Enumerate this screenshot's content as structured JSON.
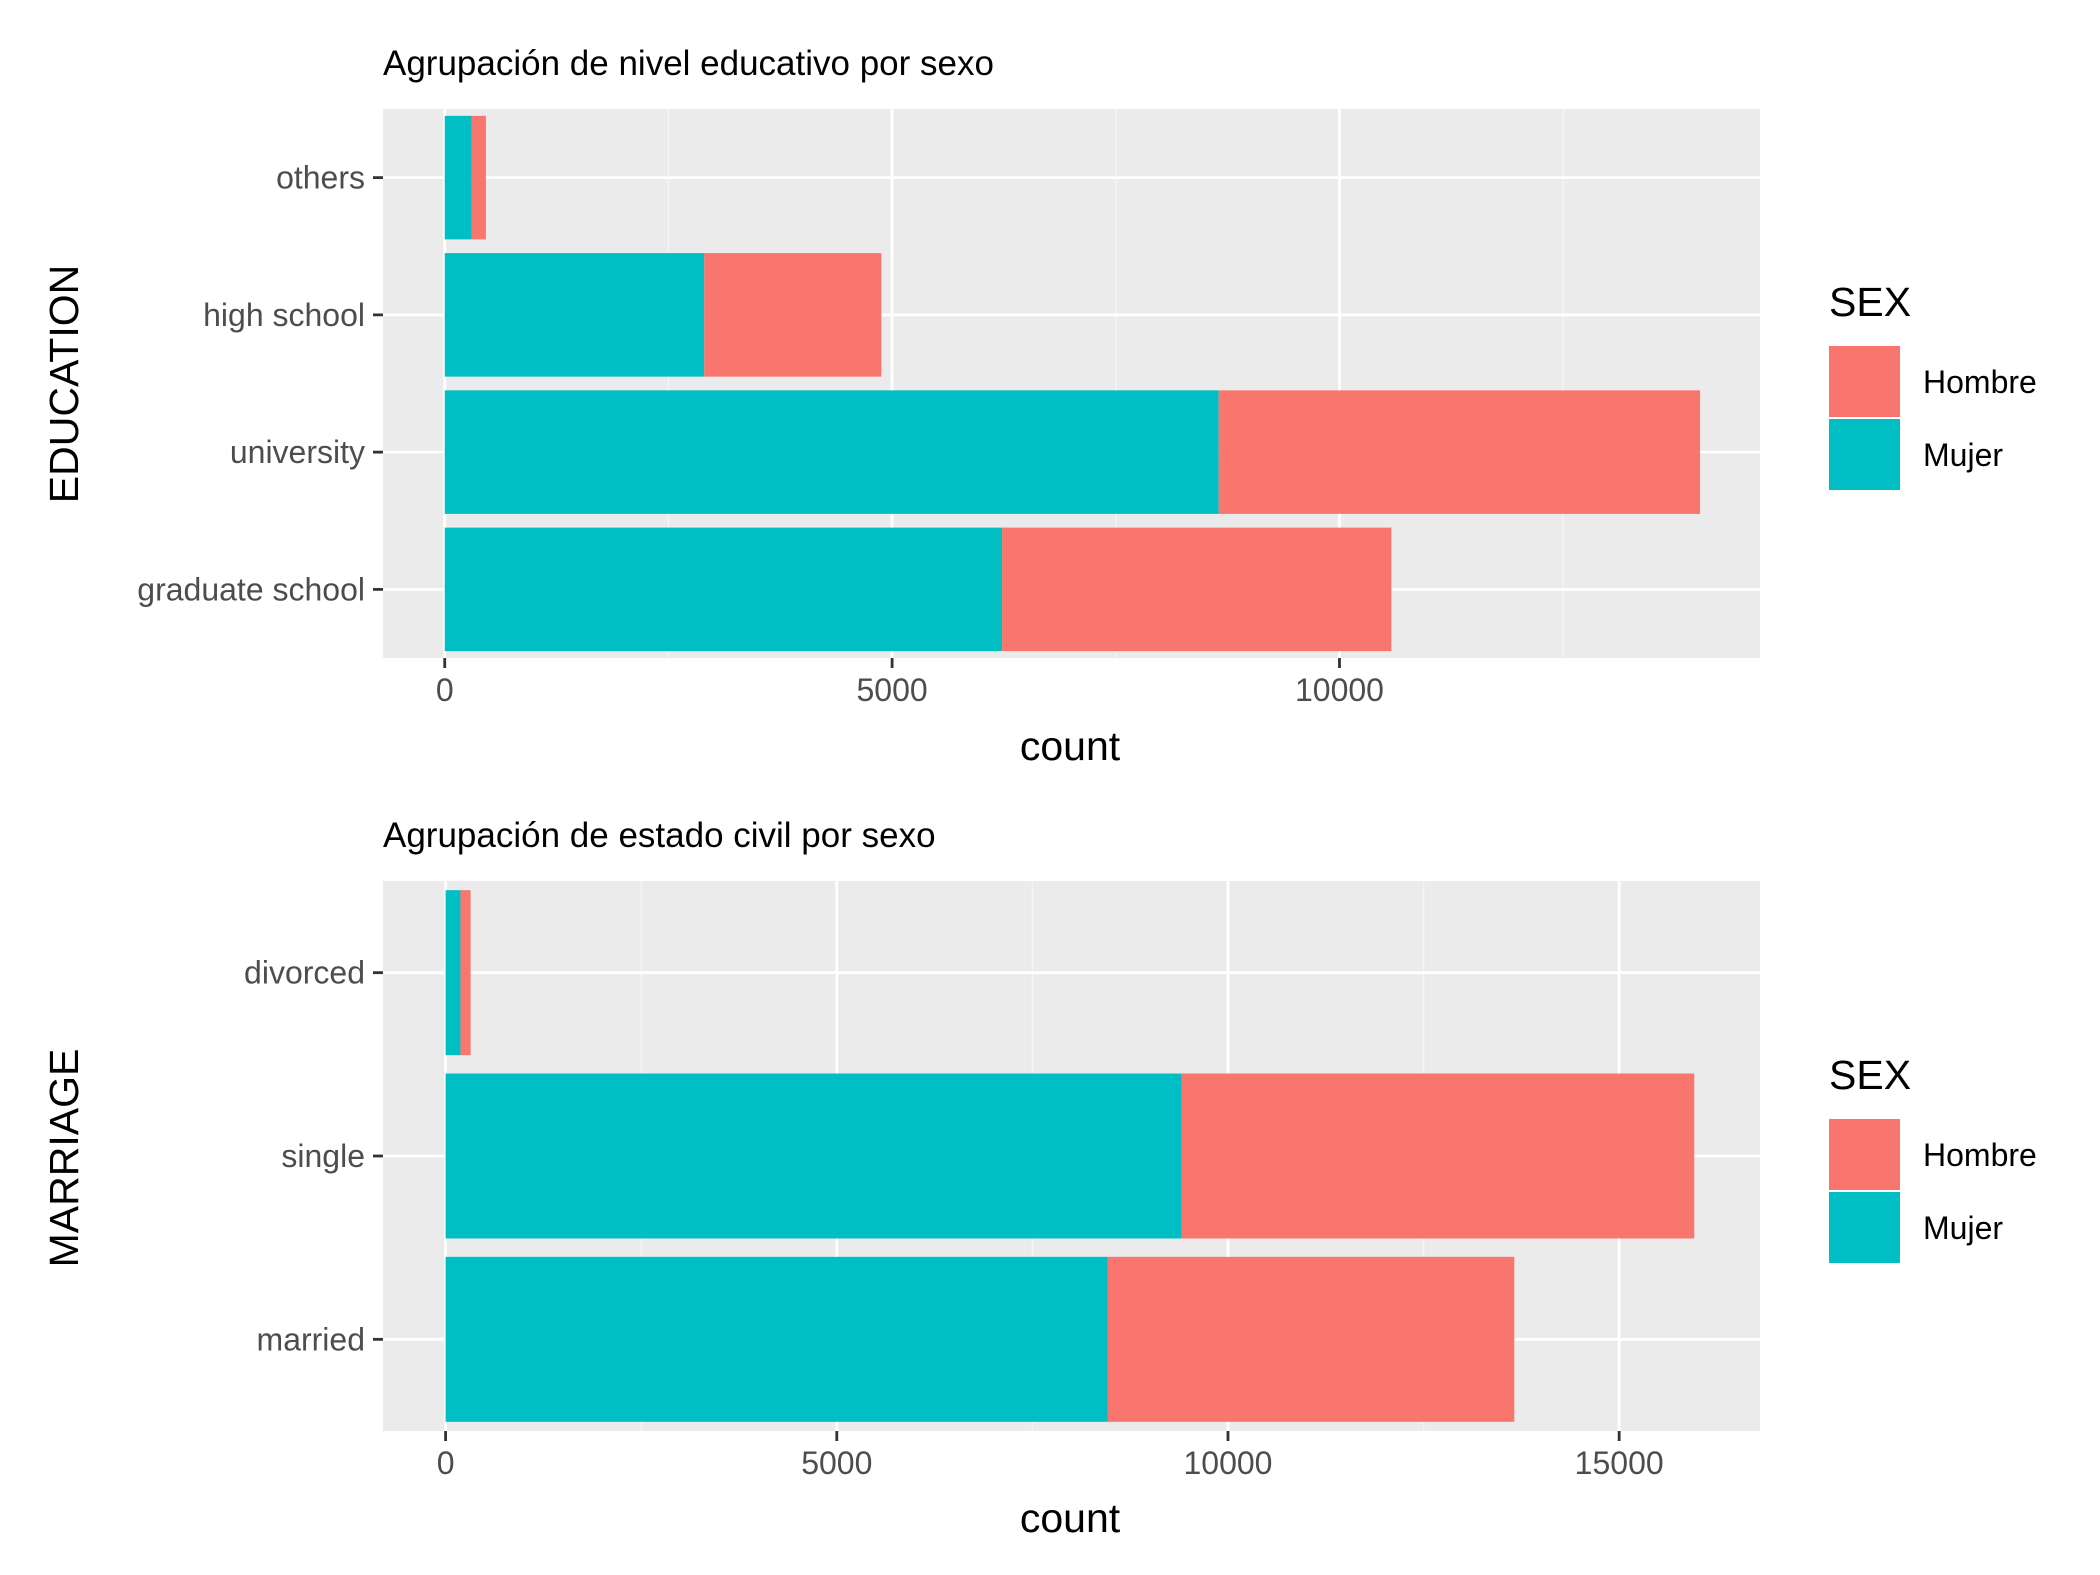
{
  "colors": {
    "hombre": "#F8766D",
    "mujer": "#00BFC4",
    "panel": "#EBEBEB",
    "grid_major": "#FFFFFF",
    "grid_minor": "#F5F5F5"
  },
  "chart_data": [
    {
      "type": "bar",
      "orientation": "horizontal",
      "stacked": true,
      "title": "Agrupación de nivel educativo por sexo",
      "xlabel": "count",
      "ylabel": "EDUCATION",
      "categories": [
        "others",
        "high school",
        "university",
        "graduate school"
      ],
      "series": [
        {
          "name": "Mujer",
          "values": [
            300,
            2900,
            8650,
            6230
          ]
        },
        {
          "name": "Hombre",
          "values": [
            160,
            1980,
            5380,
            4350
          ]
        }
      ],
      "xlim": [
        -690,
        14700
      ],
      "xticks": [
        0,
        5000,
        10000
      ],
      "xtick_labels": [
        "0",
        "5000",
        "10000"
      ],
      "grid": true,
      "legend": {
        "title": "SEX",
        "entries": [
          "Hombre",
          "Mujer"
        ],
        "placement": "right"
      }
    },
    {
      "type": "bar",
      "orientation": "horizontal",
      "stacked": true,
      "title": "Agrupación de estado civil por sexo",
      "xlabel": "count",
      "ylabel": "MARRIAGE",
      "categories": [
        "divorced",
        "single",
        "married"
      ],
      "series": [
        {
          "name": "Mujer",
          "values": [
            190,
            9410,
            8460
          ]
        },
        {
          "name": "Hombre",
          "values": [
            130,
            6550,
            5200
          ]
        }
      ],
      "xlim": [
        -800,
        16800
      ],
      "xticks": [
        0,
        5000,
        10000,
        15000
      ],
      "xtick_labels": [
        "0",
        "5000",
        "10000",
        "15000"
      ],
      "grid": true,
      "legend": {
        "title": "SEX",
        "entries": [
          "Hombre",
          "Mujer"
        ],
        "placement": "right"
      }
    }
  ]
}
